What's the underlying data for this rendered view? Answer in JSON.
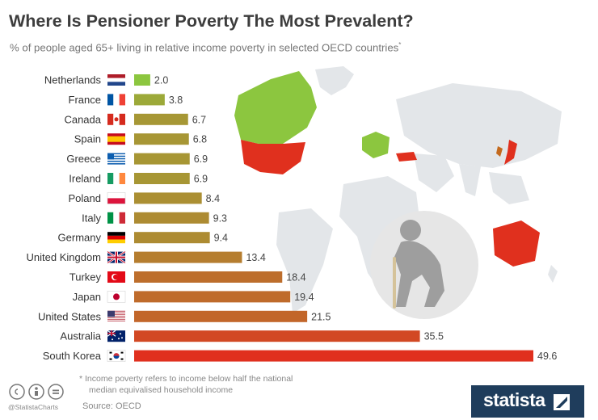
{
  "header": {
    "title": "Where Is Pensioner Poverty The Most Prevalent?",
    "subtitle": "% of people aged 65+ living in relative income poverty in selected OECD countries",
    "subtitle_mark": "*"
  },
  "footer": {
    "footnote_line1": "* Income poverty refers to income below half the national",
    "footnote_line2": "median equivalised household income",
    "source": "Source: OECD",
    "handle": "@StatistaCharts",
    "brand": "statista"
  },
  "colors": {
    "low": "#8cc63f",
    "high": "#e0301e",
    "map_gray": "#e3e6e9",
    "brand_bg": "#1f3d5c"
  },
  "icons": [
    "creative-commons-icon",
    "attribution-icon",
    "no-derivatives-icon",
    "statista-logo-icon",
    "elderly-person-icon",
    "world-map-icon"
  ],
  "chart_data": {
    "type": "bar",
    "orientation": "horizontal",
    "categories": [
      "Netherlands",
      "France",
      "Canada",
      "Spain",
      "Greece",
      "Ireland",
      "Poland",
      "Italy",
      "Germany",
      "United Kingdom",
      "Turkey",
      "Japan",
      "United States",
      "Australia",
      "South Korea"
    ],
    "values": [
      2.0,
      3.8,
      6.7,
      6.8,
      6.9,
      6.9,
      8.4,
      9.3,
      9.4,
      13.4,
      18.4,
      19.4,
      21.5,
      35.5,
      49.6
    ],
    "value_labels": [
      "2.0",
      "3.8",
      "6.7",
      "6.8",
      "6.9",
      "6.9",
      "8.4",
      "9.3",
      "9.4",
      "13.4",
      "18.4",
      "19.4",
      "21.5",
      "35.5",
      "49.6"
    ],
    "title": "Where Is Pensioner Poverty The Most Prevalent?",
    "subtitle": "% of people aged 65+ living in relative income poverty in selected OECD countries",
    "xlabel": "",
    "ylabel": "",
    "xlim": [
      0,
      50
    ],
    "grid": false,
    "legend": "none"
  }
}
